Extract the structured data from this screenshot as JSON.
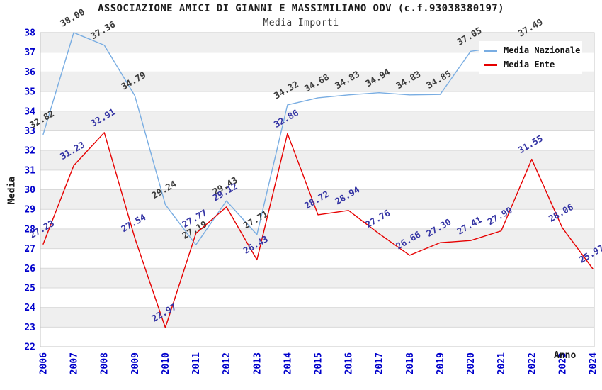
{
  "header": {
    "title": "ASSOCIAZIONE AMICI DI GIANNI E MASSIMILIANO ODV (c.f.93038380197)",
    "subtitle": "Media Importi"
  },
  "axes": {
    "x_label": "Anno",
    "y_label": "Media",
    "y_min": 22,
    "y_max": 38,
    "y_tick_step": 1,
    "tick_label_color": "#0000cc"
  },
  "legend": {
    "position": "top-right",
    "items": [
      {
        "label": "Media Nazionale",
        "color": "#79ade2"
      },
      {
        "label": "Media Ente",
        "color": "#e60000"
      }
    ]
  },
  "chart_data": {
    "type": "line",
    "title": "ASSOCIAZIONE AMICI DI GIANNI E MASSIMILIANO ODV (c.f.93038380197)",
    "subtitle": "Media Importi",
    "xlabel": "Anno",
    "ylabel": "Media",
    "ylim": [
      22,
      38
    ],
    "grid": true,
    "band_colors": [
      "#efefef",
      "#ffffff"
    ],
    "grid_color": "#d9d9d9",
    "border_color": "#c4c4c4",
    "x": [
      2006,
      2007,
      2008,
      2009,
      2010,
      2011,
      2012,
      2013,
      2014,
      2015,
      2016,
      2017,
      2018,
      2019,
      2020,
      2021,
      2022,
      2023,
      2024
    ],
    "series": [
      {
        "name": "Media Nazionale",
        "color": "#79ade2",
        "label_color": "#3a3a3a",
        "values": [
          32.82,
          38.0,
          37.36,
          34.79,
          29.24,
          27.19,
          29.43,
          27.71,
          34.32,
          34.68,
          34.83,
          34.94,
          34.83,
          34.85,
          37.05,
          null,
          37.49,
          null,
          null
        ]
      },
      {
        "name": "Media Ente",
        "color": "#e60000",
        "label_color": "#3434a4",
        "values": [
          27.23,
          31.23,
          32.91,
          27.54,
          22.97,
          27.77,
          29.12,
          26.43,
          32.86,
          28.72,
          28.94,
          27.76,
          26.66,
          27.3,
          27.41,
          27.9,
          31.55,
          28.06,
          25.97
        ]
      }
    ]
  }
}
